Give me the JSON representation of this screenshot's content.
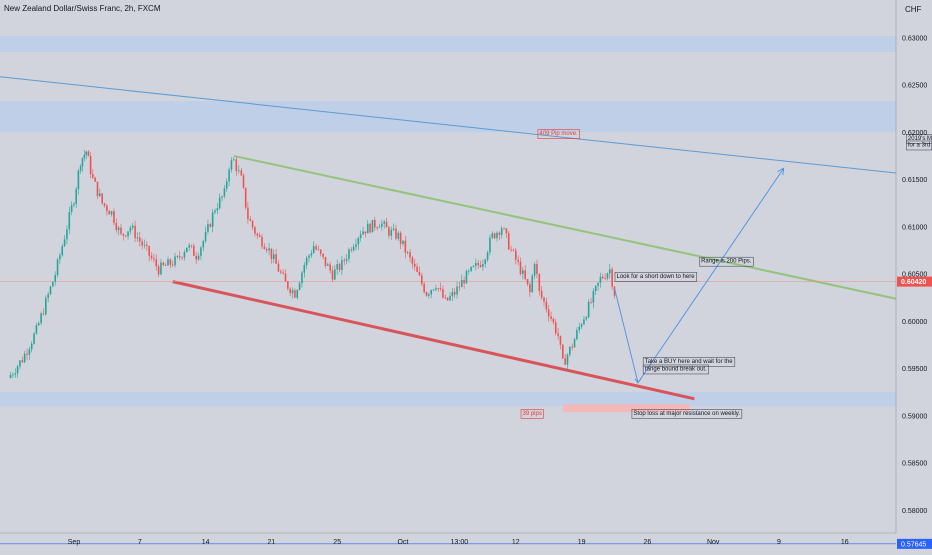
{
  "chart_data": {
    "type": "candlestick",
    "title": "New Zealand Dollar/Swiss Franc, 2h, FXCM",
    "currency": "CHF",
    "ylim": [
      0.5758,
      0.634
    ],
    "y_ticks": [
      {
        "value": 0.63,
        "label": "0.63000"
      },
      {
        "value": 0.625,
        "label": "0.62500"
      },
      {
        "value": 0.62,
        "label": "0.62000"
      },
      {
        "value": 0.615,
        "label": "0.61500"
      },
      {
        "value": 0.61,
        "label": "0.61000"
      },
      {
        "value": 0.605,
        "label": "0.60500"
      },
      {
        "value": 0.6,
        "label": "0.60000"
      },
      {
        "value": 0.595,
        "label": "0.59500"
      },
      {
        "value": 0.59,
        "label": "0.59000"
      },
      {
        "value": 0.585,
        "label": "0.58500"
      },
      {
        "value": 0.58,
        "label": "0.58000"
      }
    ],
    "x_ticks": [
      {
        "index": 0,
        "label": "Sep"
      },
      {
        "index": 7,
        "label": "7"
      },
      {
        "index": 14,
        "label": "14"
      },
      {
        "index": 21,
        "label": "21"
      },
      {
        "index": 28,
        "label": "25"
      },
      {
        "index": 35,
        "label": "Oct"
      },
      {
        "index": 41,
        "label": "13:00"
      },
      {
        "index": 47,
        "label": "12"
      },
      {
        "index": 54,
        "label": "19"
      },
      {
        "index": 61,
        "label": "26"
      },
      {
        "index": 68,
        "label": "Nov"
      },
      {
        "index": 75,
        "label": "9"
      },
      {
        "index": 82,
        "label": "16"
      }
    ],
    "last_price": {
      "value": 0.6042,
      "label": "0.60420"
    },
    "bottom_price": {
      "value": 0.57645,
      "label": "0.57645"
    },
    "price_path": [
      [
        -7.0,
        0.594
      ],
      [
        -5.5,
        0.596
      ],
      [
        -4.0,
        0.599
      ],
      [
        -3.0,
        0.602
      ],
      [
        -2.0,
        0.605
      ],
      [
        -1.0,
        0.609
      ],
      [
        0.0,
        0.613
      ],
      [
        0.7,
        0.617
      ],
      [
        1.3,
        0.618
      ],
      [
        2.0,
        0.615
      ],
      [
        3.0,
        0.6125
      ],
      [
        4.0,
        0.6115
      ],
      [
        5.0,
        0.609
      ],
      [
        6.0,
        0.61
      ],
      [
        7.0,
        0.6085
      ],
      [
        8.0,
        0.607
      ],
      [
        9.0,
        0.6055
      ],
      [
        10.0,
        0.606
      ],
      [
        11.0,
        0.6065
      ],
      [
        12.0,
        0.608
      ],
      [
        13.0,
        0.607
      ],
      [
        14.0,
        0.609
      ],
      [
        15.0,
        0.612
      ],
      [
        16.0,
        0.6135
      ],
      [
        16.5,
        0.6165
      ],
      [
        17.0,
        0.617
      ],
      [
        17.8,
        0.615
      ],
      [
        18.5,
        0.611
      ],
      [
        19.5,
        0.609
      ],
      [
        20.5,
        0.608
      ],
      [
        21.5,
        0.606
      ],
      [
        22.5,
        0.604
      ],
      [
        23.5,
        0.603
      ],
      [
        24.5,
        0.606
      ],
      [
        25.5,
        0.608
      ],
      [
        26.5,
        0.6065
      ],
      [
        27.5,
        0.605
      ],
      [
        28.5,
        0.606
      ],
      [
        29.5,
        0.608
      ],
      [
        30.5,
        0.6095
      ],
      [
        31.5,
        0.61
      ],
      [
        32.5,
        0.6105
      ],
      [
        33.5,
        0.6095
      ],
      [
        34.5,
        0.609
      ],
      [
        35.5,
        0.607
      ],
      [
        36.5,
        0.605
      ],
      [
        37.5,
        0.603
      ],
      [
        38.5,
        0.604
      ],
      [
        39.5,
        0.602
      ],
      [
        40.5,
        0.603
      ],
      [
        41.5,
        0.6045
      ],
      [
        42.5,
        0.6055
      ],
      [
        43.5,
        0.6065
      ],
      [
        44.5,
        0.609
      ],
      [
        45.5,
        0.61
      ],
      [
        46.5,
        0.6075
      ],
      [
        47.5,
        0.6055
      ],
      [
        48.5,
        0.603
      ],
      [
        49.0,
        0.6065
      ],
      [
        49.5,
        0.603
      ],
      [
        50.5,
        0.601
      ],
      [
        51.5,
        0.5985
      ],
      [
        52.0,
        0.5955
      ],
      [
        53.0,
        0.5975
      ],
      [
        54.0,
        0.6
      ],
      [
        55.0,
        0.602
      ],
      [
        56.0,
        0.6045
      ],
      [
        57.0,
        0.6055
      ],
      [
        57.5,
        0.603
      ]
    ],
    "horizontal_zones": [
      {
        "from": 0.6285,
        "to": 0.6302,
        "color": "#bfcfe8"
      },
      {
        "from": 0.62,
        "to": 0.6233,
        "color": "#bfcfe8"
      },
      {
        "from": 0.591,
        "to": 0.5925,
        "color": "#bfcfe8"
      }
    ],
    "trend_lines": [
      {
        "x1": -10.0,
        "y1": 0.6261,
        "x2": 93.0,
        "y2": 0.6151,
        "color": "#5b9bd5",
        "width": 1
      },
      {
        "x1": 17.0,
        "y1": 0.6175,
        "x2": 93.0,
        "y2": 0.6012,
        "color": "#93c47d",
        "width": 2
      },
      {
        "x1": 10.5,
        "y1": 0.6042,
        "x2": 66.0,
        "y2": 0.5918,
        "color": "#d9545a",
        "width": 3
      },
      {
        "x1": -10.0,
        "y1": 0.6042,
        "x2": 93.0,
        "y2": 0.6042,
        "color": "#f28b82",
        "width": 0.6
      }
    ],
    "projection_path": [
      [
        57.5,
        0.6035
      ],
      [
        60.0,
        0.5935
      ],
      [
        75.5,
        0.6162
      ]
    ],
    "stop_loss_box": {
      "x_from": 52.0,
      "x_to": 65.5,
      "from": 0.5904,
      "to": 0.5912,
      "color": "#f4b8b8"
    },
    "annotations": [
      {
        "text": "409 Pip move.",
        "color": "#e53935",
        "x": 49.3,
        "y": 0.6197
      },
      {
        "text": "2019's Ma",
        "color": "#131722",
        "x": 88.5,
        "y": 0.6192
      },
      {
        "text": "for a 3rd",
        "color": "#131722",
        "x": 88.5,
        "y": 0.6185
      },
      {
        "text": "Range is 200 Pips.",
        "color": "#131722",
        "x": 66.5,
        "y": 0.6062
      },
      {
        "text": "Look for a short down to here",
        "color": "#131722",
        "x": 57.5,
        "y": 0.6046
      },
      {
        "text": "Take a BUY here and wait for the",
        "color": "#131722",
        "x": 60.5,
        "y": 0.5956
      },
      {
        "text": "range bound break out.",
        "color": "#131722",
        "x": 60.5,
        "y": 0.5948
      },
      {
        "text": "39 pips",
        "color": "#e53935",
        "x": 47.5,
        "y": 0.5901
      },
      {
        "text": "Stop loss at major resistance on weekly.",
        "color": "#131722",
        "x": 59.3,
        "y": 0.5901
      }
    ],
    "colors": {
      "background": "#d1d4dc",
      "up_candle": "#26a69a",
      "down_candle": "#ef5350",
      "axis_text": "#131722",
      "price_badge": "#ef5350",
      "bottom_badge": "#2962ff"
    }
  }
}
